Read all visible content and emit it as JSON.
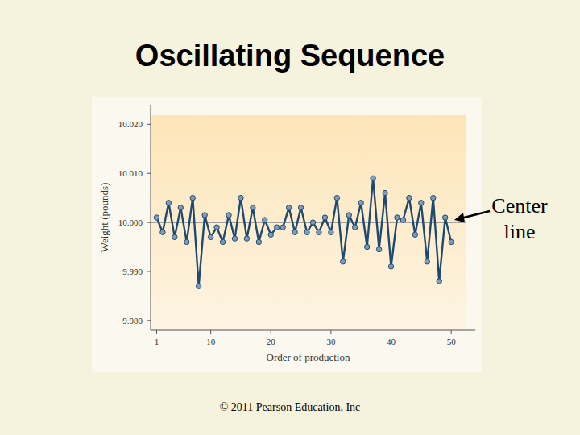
{
  "chart_data": {
    "type": "line",
    "title": "Oscillating Sequence",
    "x_label": "Order of production",
    "y_label": "Weight (pounds)",
    "source": "© 2011 Pearson Education, Inc",
    "center_line": {
      "value": 10.0,
      "label": "Center line"
    },
    "x": [
      1,
      2,
      3,
      4,
      5,
      6,
      7,
      8,
      9,
      10,
      11,
      12,
      13,
      14,
      15,
      16,
      17,
      18,
      19,
      20,
      21,
      22,
      23,
      24,
      25,
      26,
      27,
      28,
      29,
      30,
      31,
      32,
      33,
      34,
      35,
      36,
      37,
      38,
      39,
      40,
      41,
      42,
      43,
      44,
      45,
      46,
      47,
      48,
      49,
      50
    ],
    "series": [
      {
        "name": "Weight",
        "color": "#1f4a70",
        "marker": "circle",
        "values": [
          10.001,
          9.998,
          10.004,
          9.997,
          10.003,
          9.996,
          10.005,
          9.987,
          10.0015,
          9.997,
          9.999,
          9.996,
          10.0015,
          9.9967,
          10.005,
          9.9967,
          10.003,
          9.996,
          10.0005,
          9.9975,
          9.999,
          9.999,
          10.003,
          9.998,
          10.003,
          9.998,
          10.0,
          9.998,
          10.001,
          9.998,
          10.005,
          9.992,
          10.0015,
          9.999,
          10.004,
          9.995,
          10.009,
          9.9945,
          10.006,
          9.991,
          10.001,
          10.0005,
          10.005,
          9.9975,
          10.004,
          9.992,
          10.005,
          9.988,
          10.001,
          9.996
        ]
      }
    ],
    "xlim": [
      0,
      54
    ],
    "ylim": [
      9.978,
      10.024
    ],
    "xticks": [
      1,
      10,
      20,
      30,
      40,
      50
    ],
    "yticks": [
      {
        "value": 9.98,
        "label": "9.980"
      },
      {
        "value": 9.99,
        "label": "9.990"
      },
      {
        "value": 10.0,
        "label": "10.000"
      },
      {
        "value": 10.01,
        "label": "10.010"
      },
      {
        "value": 10.02,
        "label": "10.020"
      }
    ],
    "grid": false
  }
}
